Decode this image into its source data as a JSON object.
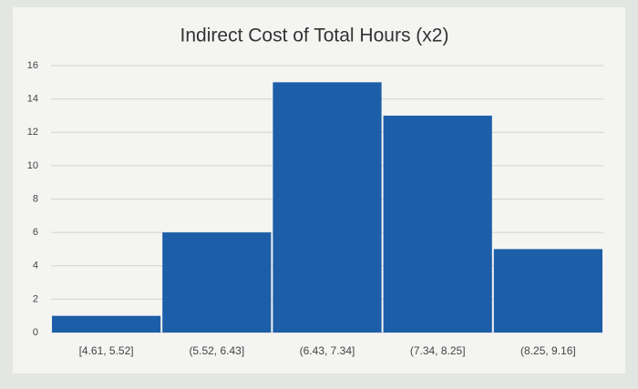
{
  "chart_data": {
    "type": "bar",
    "title": "Indirect Cost of Total Hours (x2)",
    "categories": [
      "[4.61, 5.52]",
      "(5.52, 6.43]",
      "(6.43, 7.34]",
      "(7.34, 8.25]",
      "(8.25, 9.16]"
    ],
    "values": [
      1,
      6,
      15,
      13,
      5
    ],
    "color": "#1d5ea8",
    "ylim": [
      0,
      16
    ],
    "yticks": [
      0,
      2,
      4,
      6,
      8,
      10,
      12,
      14,
      16
    ],
    "grid": true
  }
}
